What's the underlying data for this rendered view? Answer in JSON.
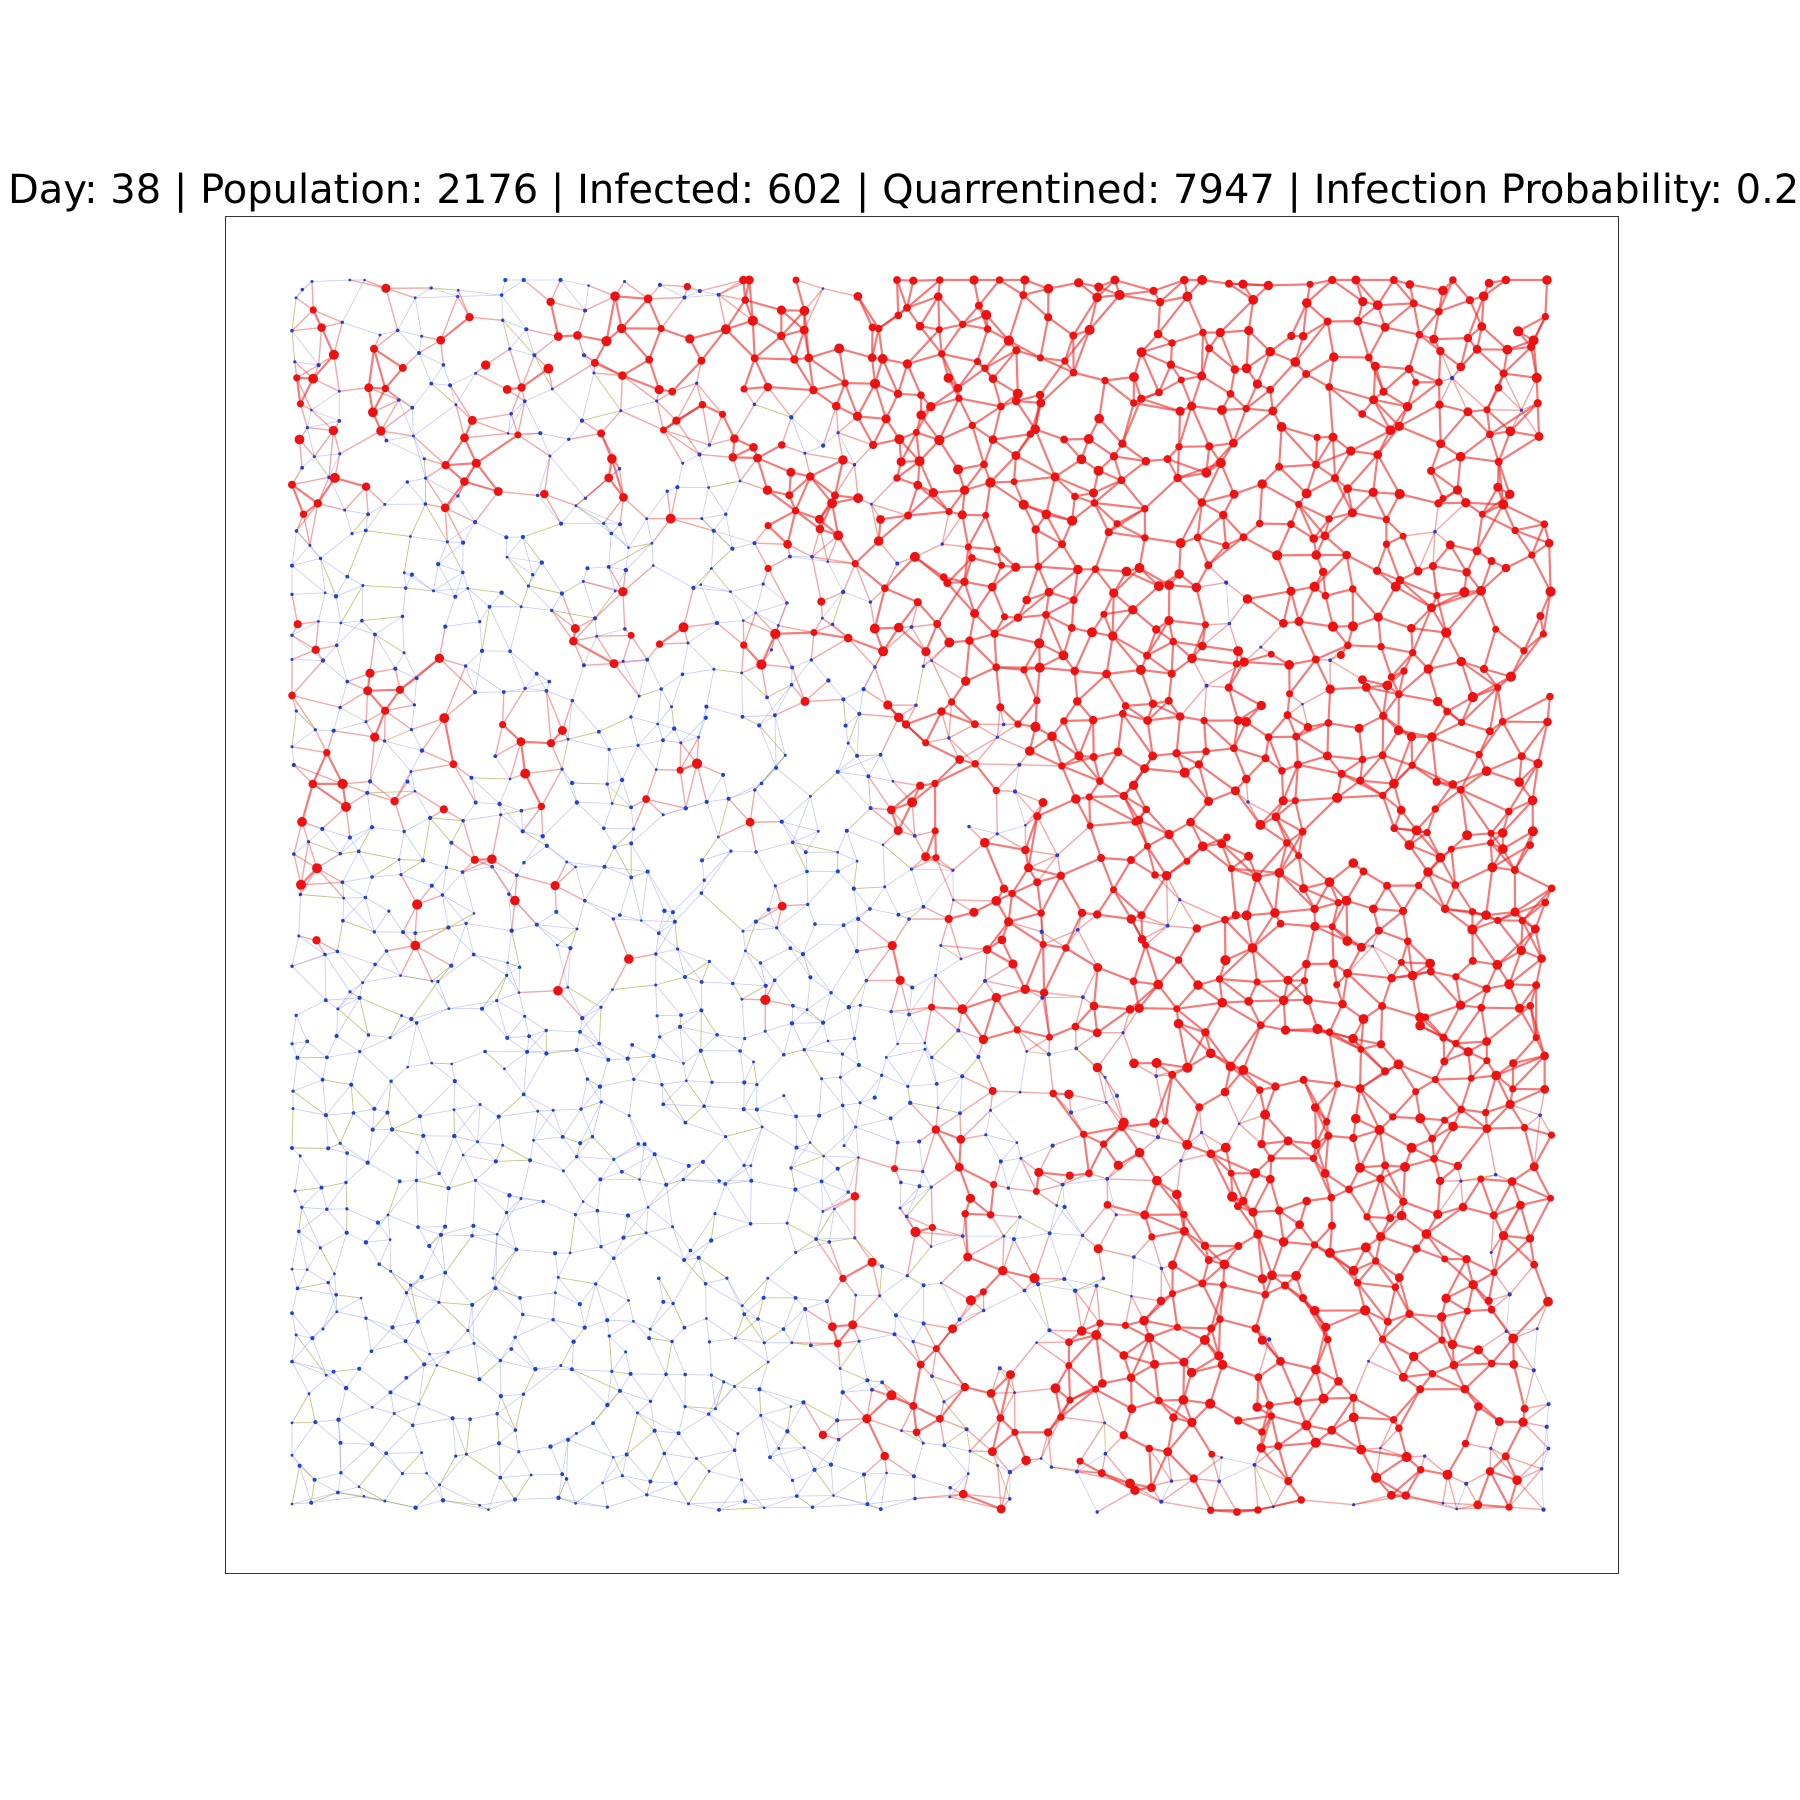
{
  "title": "Day: 38 | Population: 2176 | Infected: 602 | Quarrentined: 7947 | Infection Probability: 0.2",
  "stats": {
    "day": 38,
    "population": 2176,
    "infected": 602,
    "quarantined": 7947,
    "infection_probability": 0.2
  },
  "colors": {
    "healthy_node": "#1f3fd6",
    "infected_node": "#ee1111",
    "healthy_edge": "#7f8cf0",
    "infected_edge": "#ee2222",
    "mixed_edge": "#a6a640",
    "frame": "#333333",
    "background": "#ffffff"
  }
}
